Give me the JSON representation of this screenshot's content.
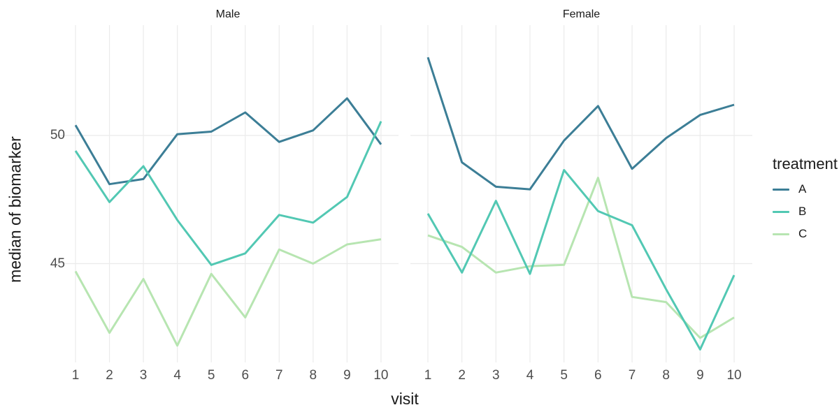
{
  "chart_data": {
    "type": "line",
    "title": "",
    "xlabel": "visit",
    "ylabel": "median of biomarker",
    "x": [
      1,
      2,
      3,
      4,
      5,
      6,
      7,
      8,
      9,
      10
    ],
    "yticks": [
      50,
      45
    ],
    "ylim": [
      41.2,
      54.3
    ],
    "grid": true,
    "background": "#FFFFFF",
    "grid_color": "#EBEBEB",
    "series_colors": {
      "A": "#3C7E96",
      "B": "#52C8B3",
      "C": "#B7E5B1"
    },
    "legend": {
      "title": "treatment",
      "position": "right",
      "entries": [
        "A",
        "B",
        "C"
      ]
    },
    "facets": [
      {
        "label": "Male",
        "series": [
          {
            "name": "A",
            "values": [
              50.4,
              48.1,
              48.3,
              50.05,
              50.15,
              50.9,
              49.75,
              50.2,
              51.45,
              49.65
            ]
          },
          {
            "name": "B",
            "values": [
              49.4,
              47.4,
              48.8,
              46.7,
              44.95,
              45.4,
              46.9,
              46.6,
              47.6,
              50.55
            ]
          },
          {
            "name": "C",
            "values": [
              44.7,
              42.3,
              44.4,
              41.8,
              44.6,
              42.9,
              45.55,
              45.0,
              45.75,
              45.95
            ]
          }
        ]
      },
      {
        "label": "Female",
        "series": [
          {
            "name": "A",
            "values": [
              53.05,
              48.95,
              48.0,
              47.9,
              49.8,
              51.15,
              48.7,
              49.9,
              50.8,
              51.2
            ]
          },
          {
            "name": "B",
            "values": [
              46.95,
              44.65,
              47.45,
              44.6,
              48.65,
              47.05,
              46.5,
              44.0,
              41.65,
              44.55
            ]
          },
          {
            "name": "C",
            "values": [
              46.1,
              45.65,
              44.65,
              44.9,
              44.95,
              48.35,
              43.7,
              43.5,
              42.1,
              42.9
            ]
          }
        ]
      }
    ]
  }
}
